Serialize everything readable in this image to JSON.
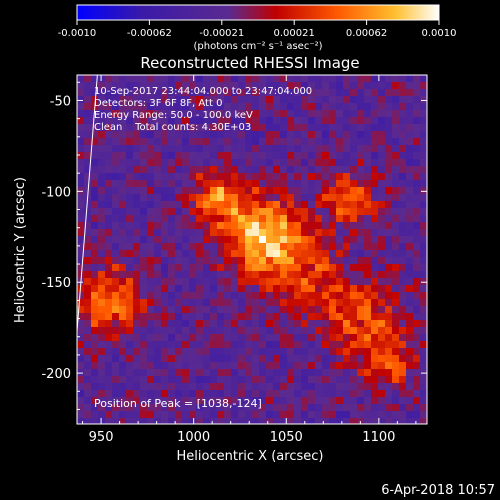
{
  "chart_data": {
    "type": "heatmap",
    "title": "Reconstructed RHESSI Image",
    "xlabel": "Heliocentric X (arcsec)",
    "ylabel": "Heliocentric Y (arcsec)",
    "xlim": [
      937,
      1126
    ],
    "ylim": [
      -228,
      -36
    ],
    "xticks": [
      950,
      1000,
      1050,
      1100
    ],
    "yticks": [
      -50,
      -100,
      -150,
      -200
    ],
    "grid": false,
    "colorbar": {
      "range": [
        -0.001,
        0.001
      ],
      "ticks": [
        "-0.0010",
        "-0.00062",
        "-0.00021",
        "0.00021",
        "0.00062",
        "0.0010"
      ],
      "label": "(photons cm⁻² s⁻¹ asec⁻²)",
      "colormap": [
        "#0000ff",
        "#3a1aa8",
        "#5a2a90",
        "#c00000",
        "#ff5a00",
        "#ffc030",
        "#ffffff"
      ]
    },
    "annotations": [
      "10-Sep-2017 23:44:04.000 to 23:47:04.000",
      "Detectors: 3F 6F 8F, Att 0",
      "Energy Range: 50.0 - 100.0 keV",
      "Clean    Total counts: 4.30E+03"
    ],
    "peak_label": "Position of Peak = [1038,-124]",
    "peak": [
      1038,
      -124
    ],
    "limb": [
      [
        937,
        -177
      ],
      [
        948,
        -36
      ]
    ]
  },
  "footer": {
    "timestamp": "6-Apr-2018 10:57"
  }
}
